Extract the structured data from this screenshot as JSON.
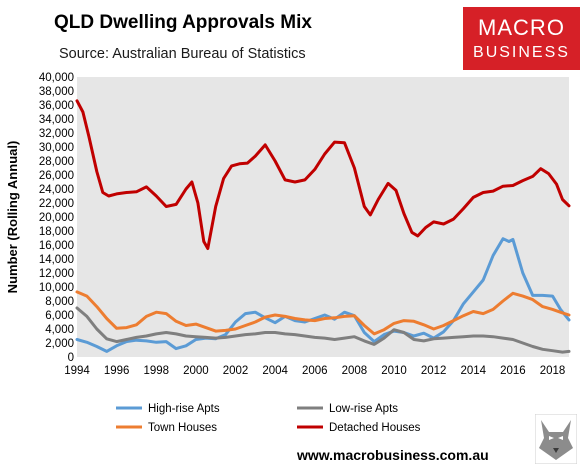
{
  "header": {
    "title": "QLD Dwelling Approvals Mix",
    "subtitle": "Source: Australian Bureau of Statistics"
  },
  "logo": {
    "line1": "MACRO",
    "line2": "BUSINESS",
    "color": "#d62027"
  },
  "footer": {
    "url": "www.macrobusiness.com.au",
    "mascot_icon": "wolf-icon"
  },
  "chart_data": {
    "type": "line",
    "title": "QLD Dwelling Approvals Mix",
    "subtitle": "Source: Australian Bureau of Statistics",
    "xlabel": "",
    "ylabel": "Number (Rolling Annual)",
    "xlim": [
      1994,
      2018.83
    ],
    "ylim": [
      0,
      40000
    ],
    "x_ticks": [
      "1994",
      "1996",
      "1998",
      "2000",
      "2002",
      "2004",
      "2006",
      "2008",
      "2010",
      "2012",
      "2014",
      "2016",
      "2018"
    ],
    "y_ticks": [
      "0",
      "2,000",
      "4,000",
      "6,000",
      "8,000",
      "10,000",
      "12,000",
      "14,000",
      "16,000",
      "18,000",
      "20,000",
      "22,000",
      "24,000",
      "26,000",
      "28,000",
      "30,000",
      "32,000",
      "34,000",
      "36,000",
      "38,000",
      "40,000"
    ],
    "grid": false,
    "plot_background": "#e6e6e6",
    "legend_position": "bottom",
    "series": [
      {
        "name": "High-rise Apts",
        "color": "#5b9bd5",
        "points": [
          [
            1994.0,
            2500
          ],
          [
            1994.5,
            2100
          ],
          [
            1995.0,
            1500
          ],
          [
            1995.5,
            800
          ],
          [
            1996.0,
            1600
          ],
          [
            1996.5,
            2200
          ],
          [
            1997.0,
            2400
          ],
          [
            1997.5,
            2300
          ],
          [
            1998.0,
            2100
          ],
          [
            1998.5,
            2200
          ],
          [
            1999.0,
            1200
          ],
          [
            1999.5,
            1600
          ],
          [
            2000.0,
            2500
          ],
          [
            2000.5,
            2700
          ],
          [
            2001.0,
            2600
          ],
          [
            2001.5,
            3200
          ],
          [
            2002.0,
            5000
          ],
          [
            2002.5,
            6200
          ],
          [
            2003.0,
            6400
          ],
          [
            2003.5,
            5600
          ],
          [
            2004.0,
            4900
          ],
          [
            2004.5,
            5800
          ],
          [
            2005.0,
            5200
          ],
          [
            2005.5,
            5000
          ],
          [
            2006.0,
            5500
          ],
          [
            2006.5,
            6000
          ],
          [
            2007.0,
            5400
          ],
          [
            2007.5,
            6400
          ],
          [
            2008.0,
            5900
          ],
          [
            2008.5,
            3500
          ],
          [
            2009.0,
            2200
          ],
          [
            2009.5,
            3200
          ],
          [
            2010.0,
            3700
          ],
          [
            2010.5,
            3500
          ],
          [
            2011.0,
            3000
          ],
          [
            2011.5,
            3400
          ],
          [
            2012.0,
            2700
          ],
          [
            2012.5,
            3600
          ],
          [
            2013.0,
            5200
          ],
          [
            2013.5,
            7600
          ],
          [
            2014.0,
            9300
          ],
          [
            2014.5,
            11000
          ],
          [
            2015.0,
            14500
          ],
          [
            2015.5,
            16900
          ],
          [
            2015.8,
            16500
          ],
          [
            2016.0,
            16800
          ],
          [
            2016.5,
            12000
          ],
          [
            2017.0,
            8800
          ],
          [
            2017.5,
            8800
          ],
          [
            2018.0,
            8700
          ],
          [
            2018.4,
            6800
          ],
          [
            2018.83,
            5300
          ]
        ]
      },
      {
        "name": "Low-rise Apts",
        "color": "#7f7f7f",
        "points": [
          [
            1994.0,
            7000
          ],
          [
            1994.5,
            5800
          ],
          [
            1995.0,
            4000
          ],
          [
            1995.5,
            2600
          ],
          [
            1996.0,
            2200
          ],
          [
            1996.5,
            2500
          ],
          [
            1997.0,
            2800
          ],
          [
            1997.5,
            3000
          ],
          [
            1998.0,
            3300
          ],
          [
            1998.5,
            3500
          ],
          [
            1999.0,
            3300
          ],
          [
            1999.5,
            3000
          ],
          [
            2000.0,
            2900
          ],
          [
            2000.5,
            2800
          ],
          [
            2001.0,
            2700
          ],
          [
            2001.5,
            2800
          ],
          [
            2002.0,
            3000
          ],
          [
            2002.5,
            3200
          ],
          [
            2003.0,
            3300
          ],
          [
            2003.5,
            3500
          ],
          [
            2004.0,
            3500
          ],
          [
            2004.5,
            3300
          ],
          [
            2005.0,
            3200
          ],
          [
            2005.5,
            3000
          ],
          [
            2006.0,
            2800
          ],
          [
            2006.5,
            2700
          ],
          [
            2007.0,
            2500
          ],
          [
            2007.5,
            2700
          ],
          [
            2008.0,
            2900
          ],
          [
            2008.5,
            2300
          ],
          [
            2009.0,
            1800
          ],
          [
            2009.5,
            2700
          ],
          [
            2010.0,
            3900
          ],
          [
            2010.5,
            3500
          ],
          [
            2011.0,
            2500
          ],
          [
            2011.5,
            2300
          ],
          [
            2012.0,
            2600
          ],
          [
            2012.5,
            2700
          ],
          [
            2013.0,
            2800
          ],
          [
            2013.5,
            2900
          ],
          [
            2014.0,
            3000
          ],
          [
            2014.5,
            3000
          ],
          [
            2015.0,
            2900
          ],
          [
            2015.5,
            2700
          ],
          [
            2016.0,
            2500
          ],
          [
            2016.5,
            2000
          ],
          [
            2017.0,
            1500
          ],
          [
            2017.5,
            1100
          ],
          [
            2018.0,
            900
          ],
          [
            2018.5,
            700
          ],
          [
            2018.83,
            800
          ]
        ]
      },
      {
        "name": "Town Houses",
        "color": "#ed7d31",
        "points": [
          [
            1994.0,
            9300
          ],
          [
            1994.5,
            8700
          ],
          [
            1995.0,
            7200
          ],
          [
            1995.5,
            5500
          ],
          [
            1996.0,
            4100
          ],
          [
            1996.5,
            4200
          ],
          [
            1997.0,
            4600
          ],
          [
            1997.5,
            5800
          ],
          [
            1998.0,
            6400
          ],
          [
            1998.5,
            6200
          ],
          [
            1999.0,
            5100
          ],
          [
            1999.5,
            4500
          ],
          [
            2000.0,
            4700
          ],
          [
            2000.5,
            4200
          ],
          [
            2001.0,
            3700
          ],
          [
            2001.5,
            3800
          ],
          [
            2002.0,
            4000
          ],
          [
            2002.5,
            4500
          ],
          [
            2003.0,
            5000
          ],
          [
            2003.5,
            5700
          ],
          [
            2004.0,
            6000
          ],
          [
            2004.5,
            5800
          ],
          [
            2005.0,
            5500
          ],
          [
            2005.5,
            5300
          ],
          [
            2006.0,
            5200
          ],
          [
            2006.5,
            5500
          ],
          [
            2007.0,
            5600
          ],
          [
            2007.5,
            5800
          ],
          [
            2008.0,
            5900
          ],
          [
            2008.5,
            4500
          ],
          [
            2009.0,
            3300
          ],
          [
            2009.5,
            3900
          ],
          [
            2010.0,
            4800
          ],
          [
            2010.5,
            5200
          ],
          [
            2011.0,
            5100
          ],
          [
            2011.5,
            4600
          ],
          [
            2012.0,
            4000
          ],
          [
            2012.5,
            4500
          ],
          [
            2013.0,
            5200
          ],
          [
            2013.5,
            5900
          ],
          [
            2014.0,
            6500
          ],
          [
            2014.5,
            6200
          ],
          [
            2015.0,
            6800
          ],
          [
            2015.5,
            8000
          ],
          [
            2016.0,
            9100
          ],
          [
            2016.5,
            8700
          ],
          [
            2017.0,
            8200
          ],
          [
            2017.5,
            7200
          ],
          [
            2018.0,
            6800
          ],
          [
            2018.5,
            6300
          ],
          [
            2018.83,
            6000
          ]
        ]
      },
      {
        "name": "Detached Houses",
        "color": "#c00000",
        "points": [
          [
            1994.0,
            36600
          ],
          [
            1994.3,
            35000
          ],
          [
            1994.6,
            31500
          ],
          [
            1995.0,
            26500
          ],
          [
            1995.3,
            23500
          ],
          [
            1995.6,
            23000
          ],
          [
            1996.0,
            23300
          ],
          [
            1996.5,
            23500
          ],
          [
            1997.0,
            23600
          ],
          [
            1997.5,
            24300
          ],
          [
            1998.0,
            23000
          ],
          [
            1998.5,
            21500
          ],
          [
            1999.0,
            21800
          ],
          [
            1999.5,
            24000
          ],
          [
            1999.8,
            25000
          ],
          [
            2000.1,
            22000
          ],
          [
            2000.4,
            16500
          ],
          [
            2000.6,
            15500
          ],
          [
            2001.0,
            21500
          ],
          [
            2001.4,
            25500
          ],
          [
            2001.8,
            27300
          ],
          [
            2002.2,
            27600
          ],
          [
            2002.6,
            27700
          ],
          [
            2003.0,
            28700
          ],
          [
            2003.5,
            30300
          ],
          [
            2004.0,
            28000
          ],
          [
            2004.5,
            25300
          ],
          [
            2005.0,
            25000
          ],
          [
            2005.5,
            25300
          ],
          [
            2006.0,
            26800
          ],
          [
            2006.5,
            29000
          ],
          [
            2007.0,
            30700
          ],
          [
            2007.5,
            30600
          ],
          [
            2008.0,
            27000
          ],
          [
            2008.5,
            21500
          ],
          [
            2008.8,
            20300
          ],
          [
            2009.2,
            22500
          ],
          [
            2009.7,
            24800
          ],
          [
            2010.1,
            23800
          ],
          [
            2010.5,
            20500
          ],
          [
            2010.9,
            17800
          ],
          [
            2011.2,
            17300
          ],
          [
            2011.6,
            18500
          ],
          [
            2012.0,
            19300
          ],
          [
            2012.5,
            19000
          ],
          [
            2013.0,
            19700
          ],
          [
            2013.5,
            21200
          ],
          [
            2014.0,
            22800
          ],
          [
            2014.5,
            23500
          ],
          [
            2015.0,
            23700
          ],
          [
            2015.5,
            24400
          ],
          [
            2016.0,
            24500
          ],
          [
            2016.5,
            25200
          ],
          [
            2017.0,
            25800
          ],
          [
            2017.4,
            26900
          ],
          [
            2017.8,
            26200
          ],
          [
            2018.2,
            24700
          ],
          [
            2018.5,
            22500
          ],
          [
            2018.83,
            21600
          ]
        ]
      }
    ]
  }
}
